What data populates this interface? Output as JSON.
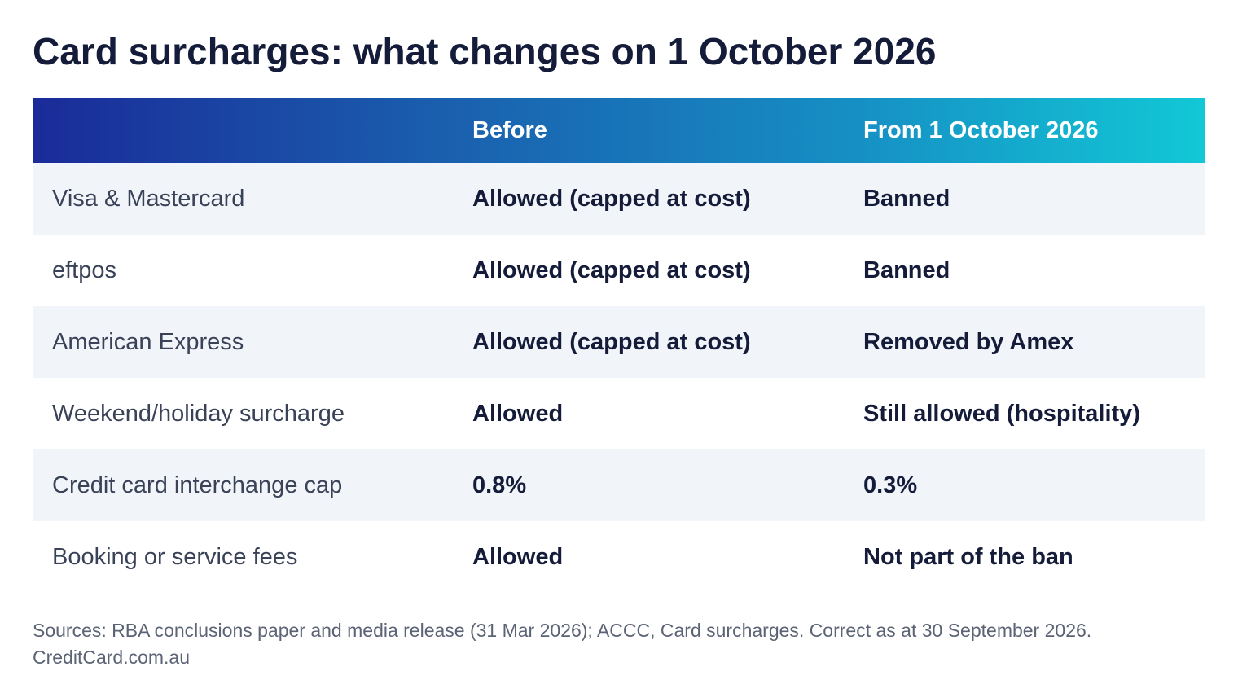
{
  "title": "Card surcharges: what changes on 1 October 2026",
  "table": {
    "headers": [
      "",
      "Before",
      "From 1 October 2026"
    ],
    "rows": [
      [
        "Visa & Mastercard",
        "Allowed (capped at cost)",
        "Banned"
      ],
      [
        "eftpos",
        "Allowed (capped at cost)",
        "Banned"
      ],
      [
        "American Express",
        "Allowed (capped at cost)",
        "Removed by Amex"
      ],
      [
        "Weekend/holiday surcharge",
        "Allowed",
        "Still allowed (hospitality)"
      ],
      [
        "Credit card interchange cap",
        "0.8%",
        "0.3%"
      ],
      [
        "Booking or service fees",
        "Allowed",
        "Not part of the ban"
      ]
    ]
  },
  "footnote": "Sources: RBA conclusions paper and media release (31 Mar 2026); ACCC, Card surcharges. Correct as at 30 September 2026. CreditCard.com.au",
  "colors": {
    "title_text": "#141c3a",
    "header_gradient_start": "#1a2b99",
    "header_gradient_end": "#12c8d6",
    "shaded_row": "#f1f5fa",
    "footnote_text": "#5b6375"
  }
}
